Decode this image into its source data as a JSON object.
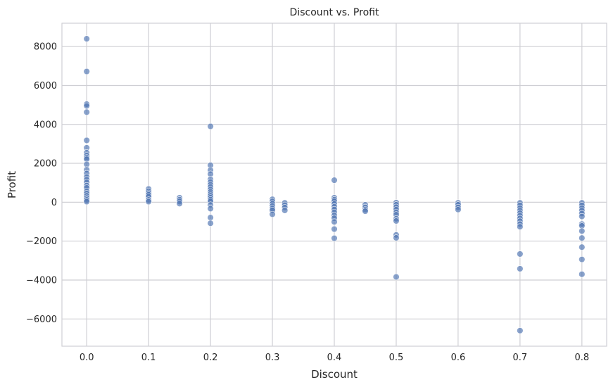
{
  "chart_data": {
    "type": "scatter",
    "title": "Discount vs. Profit",
    "xlabel": "Discount",
    "ylabel": "Profit",
    "xlim": [
      -0.04,
      0.84
    ],
    "ylim": [
      -7400,
      9200
    ],
    "xticks": [
      0.0,
      0.1,
      0.2,
      0.3,
      0.4,
      0.5,
      0.6,
      0.7,
      0.8
    ],
    "xtick_labels": [
      "0.0",
      "0.1",
      "0.2",
      "0.3",
      "0.4",
      "0.5",
      "0.6",
      "0.7",
      "0.8"
    ],
    "yticks": [
      -6000,
      -4000,
      -2000,
      0,
      2000,
      4000,
      6000,
      8000
    ],
    "ytick_labels": [
      "−6000",
      "−4000",
      "−2000",
      "0",
      "2000",
      "4000",
      "6000",
      "8000"
    ],
    "grid": true,
    "marker_color": "#4c72b0",
    "points": [
      [
        0.0,
        8400
      ],
      [
        0.0,
        6720
      ],
      [
        0.0,
        5040
      ],
      [
        0.0,
        4950
      ],
      [
        0.0,
        4630
      ],
      [
        0.0,
        3180
      ],
      [
        0.0,
        2800
      ],
      [
        0.0,
        2550
      ],
      [
        0.0,
        2400
      ],
      [
        0.0,
        2290
      ],
      [
        0.0,
        2210
      ],
      [
        0.0,
        1950
      ],
      [
        0.0,
        1670
      ],
      [
        0.0,
        1480
      ],
      [
        0.0,
        1300
      ],
      [
        0.0,
        1160
      ],
      [
        0.0,
        1020
      ],
      [
        0.0,
        860
      ],
      [
        0.0,
        740
      ],
      [
        0.0,
        560
      ],
      [
        0.0,
        450
      ],
      [
        0.0,
        330
      ],
      [
        0.0,
        220
      ],
      [
        0.0,
        120
      ],
      [
        0.0,
        30
      ],
      [
        0.1,
        680
      ],
      [
        0.1,
        560
      ],
      [
        0.1,
        470
      ],
      [
        0.1,
        380
      ],
      [
        0.1,
        280
      ],
      [
        0.1,
        120
      ],
      [
        0.1,
        30
      ],
      [
        0.15,
        230
      ],
      [
        0.15,
        130
      ],
      [
        0.15,
        40
      ],
      [
        0.15,
        -70
      ],
      [
        0.2,
        3900
      ],
      [
        0.2,
        1900
      ],
      [
        0.2,
        1650
      ],
      [
        0.2,
        1450
      ],
      [
        0.2,
        1180
      ],
      [
        0.2,
        1030
      ],
      [
        0.2,
        900
      ],
      [
        0.2,
        780
      ],
      [
        0.2,
        650
      ],
      [
        0.2,
        530
      ],
      [
        0.2,
        420
      ],
      [
        0.2,
        330
      ],
      [
        0.2,
        230
      ],
      [
        0.2,
        130
      ],
      [
        0.2,
        40
      ],
      [
        0.2,
        -140
      ],
      [
        0.2,
        -330
      ],
      [
        0.2,
        -790
      ],
      [
        0.2,
        -1080
      ],
      [
        0.3,
        150
      ],
      [
        0.3,
        40
      ],
      [
        0.3,
        -80
      ],
      [
        0.3,
        -200
      ],
      [
        0.3,
        -320
      ],
      [
        0.3,
        -410
      ],
      [
        0.3,
        -620
      ],
      [
        0.32,
        -30
      ],
      [
        0.32,
        -150
      ],
      [
        0.32,
        -270
      ],
      [
        0.32,
        -420
      ],
      [
        0.4,
        1130
      ],
      [
        0.4,
        230
      ],
      [
        0.4,
        130
      ],
      [
        0.4,
        40
      ],
      [
        0.4,
        -90
      ],
      [
        0.4,
        -230
      ],
      [
        0.4,
        -370
      ],
      [
        0.4,
        -520
      ],
      [
        0.4,
        -680
      ],
      [
        0.4,
        -820
      ],
      [
        0.4,
        -1010
      ],
      [
        0.4,
        -1380
      ],
      [
        0.4,
        -1850
      ],
      [
        0.45,
        -130
      ],
      [
        0.45,
        -260
      ],
      [
        0.45,
        -380
      ],
      [
        0.45,
        -460
      ],
      [
        0.5,
        -20
      ],
      [
        0.5,
        -130
      ],
      [
        0.5,
        -250
      ],
      [
        0.5,
        -380
      ],
      [
        0.5,
        -520
      ],
      [
        0.5,
        -640
      ],
      [
        0.5,
        -850
      ],
      [
        0.5,
        -960
      ],
      [
        0.5,
        -1680
      ],
      [
        0.5,
        -1830
      ],
      [
        0.5,
        -3840
      ],
      [
        0.6,
        -30
      ],
      [
        0.6,
        -130
      ],
      [
        0.6,
        -260
      ],
      [
        0.6,
        -380
      ],
      [
        0.7,
        -30
      ],
      [
        0.7,
        -160
      ],
      [
        0.7,
        -300
      ],
      [
        0.7,
        -430
      ],
      [
        0.7,
        -560
      ],
      [
        0.7,
        -690
      ],
      [
        0.7,
        -830
      ],
      [
        0.7,
        -970
      ],
      [
        0.7,
        -1120
      ],
      [
        0.7,
        -1260
      ],
      [
        0.7,
        -2660
      ],
      [
        0.7,
        -3420
      ],
      [
        0.7,
        -6600
      ],
      [
        0.8,
        -30
      ],
      [
        0.8,
        -160
      ],
      [
        0.8,
        -300
      ],
      [
        0.8,
        -430
      ],
      [
        0.8,
        -580
      ],
      [
        0.8,
        -730
      ],
      [
        0.8,
        -1120
      ],
      [
        0.8,
        -1210
      ],
      [
        0.8,
        -1480
      ],
      [
        0.8,
        -1840
      ],
      [
        0.8,
        -2310
      ],
      [
        0.8,
        -2940
      ],
      [
        0.8,
        -3700
      ]
    ]
  }
}
